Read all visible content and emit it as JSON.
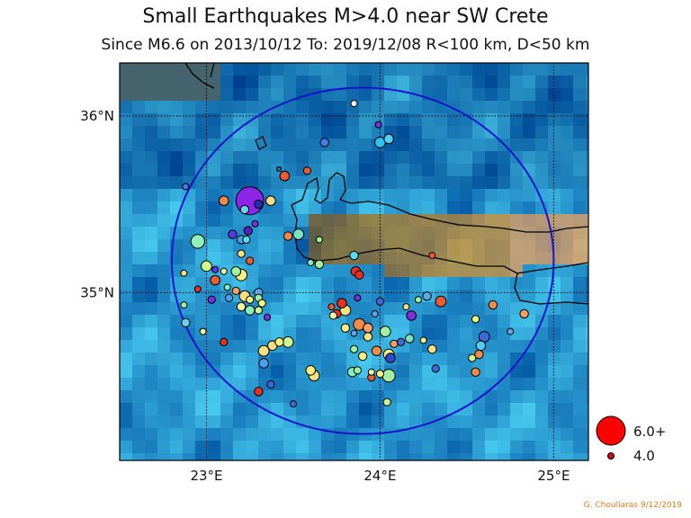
{
  "title": "Small Earthquakes M>4.0 near SW Crete",
  "subtitle": "Since M6.6 on 2013/10/12  To: 2019/12/08 R<100 km, D<50 km",
  "credit": "G. Chouliaras 9/12/2019",
  "axes": {
    "lon_range": [
      22.5,
      25.2
    ],
    "lat_range": [
      34.05,
      36.3
    ],
    "x_ticks": [
      {
        "value": 23,
        "label": "23°E"
      },
      {
        "value": 24,
        "label": "24°E"
      },
      {
        "value": 25,
        "label": "25°E"
      }
    ],
    "y_ticks": [
      {
        "value": 35,
        "label": "35°N"
      },
      {
        "value": 36,
        "label": "36°N"
      }
    ],
    "grid": "dotted"
  },
  "colors": {
    "circle": "#1515cc",
    "coast": "#000000"
  },
  "legend": {
    "placement": "bottom-right",
    "large_label": "6.0+",
    "small_label": "4.0"
  },
  "chart_data": {
    "type": "scatter",
    "region_circle": {
      "center_lon": 23.9,
      "center_lat": 35.18,
      "radius_lon": 1.1,
      "radius_lat": 0.98
    },
    "events": [
      {
        "lon": 23.25,
        "lat": 35.52,
        "mag": 6.0,
        "color": "#8b25e8"
      },
      {
        "lon": 22.95,
        "lat": 35.29,
        "mag": 4.7,
        "color": "#8ff0b8"
      },
      {
        "lon": 23.37,
        "lat": 35.52,
        "mag": 4.3,
        "color": "#f8dc8a"
      },
      {
        "lon": 23.22,
        "lat": 35.47,
        "mag": 4.2,
        "color": "#6ad0f0"
      },
      {
        "lon": 23.3,
        "lat": 35.5,
        "mag": 4.2,
        "color": "#1e2fb0"
      },
      {
        "lon": 23.1,
        "lat": 35.52,
        "mag": 4.3,
        "color": "#f08a48"
      },
      {
        "lon": 23.45,
        "lat": 35.66,
        "mag": 4.3,
        "color": "#f05a30"
      },
      {
        "lon": 23.58,
        "lat": 35.69,
        "mag": 4.1,
        "color": "#f05a30"
      },
      {
        "lon": 23.68,
        "lat": 35.85,
        "mag": 4.2,
        "color": "#4a7ae8"
      },
      {
        "lon": 23.85,
        "lat": 36.07,
        "mag": 4.0,
        "color": "#f6f6f6"
      },
      {
        "lon": 23.99,
        "lat": 35.95,
        "mag": 4.0,
        "color": "#7a30d8"
      },
      {
        "lon": 24.0,
        "lat": 35.85,
        "mag": 4.4,
        "color": "#30c0f0"
      },
      {
        "lon": 24.05,
        "lat": 35.87,
        "mag": 4.3,
        "color": "#50d0f0"
      },
      {
        "lon": 22.88,
        "lat": 35.6,
        "mag": 4.0,
        "color": "#4a7ae8"
      },
      {
        "lon": 23.15,
        "lat": 35.33,
        "mag": 4.2,
        "color": "#5a3ae0"
      },
      {
        "lon": 23.2,
        "lat": 35.3,
        "mag": 4.2,
        "color": "#4aa0f0"
      },
      {
        "lon": 23.23,
        "lat": 35.3,
        "mag": 4.1,
        "color": "#5adcf0"
      },
      {
        "lon": 23.24,
        "lat": 35.35,
        "mag": 4.2,
        "color": "#5020c0"
      },
      {
        "lon": 23.28,
        "lat": 35.39,
        "mag": 4.0,
        "color": "#8030d8"
      },
      {
        "lon": 23.47,
        "lat": 35.32,
        "mag": 4.2,
        "color": "#f08a48"
      },
      {
        "lon": 23.53,
        "lat": 35.33,
        "mag": 4.4,
        "color": "#7ae0c0"
      },
      {
        "lon": 23.65,
        "lat": 35.3,
        "mag": 4.0,
        "color": "#a0f0a0"
      },
      {
        "lon": 23.2,
        "lat": 35.22,
        "mag": 4.1,
        "color": "#f8e080"
      },
      {
        "lon": 23.25,
        "lat": 35.18,
        "mag": 4.1,
        "color": "#f05a30"
      },
      {
        "lon": 23.0,
        "lat": 35.15,
        "mag": 4.4,
        "color": "#d0f890"
      },
      {
        "lon": 22.87,
        "lat": 35.11,
        "mag": 4.0,
        "color": "#f8e080"
      },
      {
        "lon": 23.05,
        "lat": 35.13,
        "mag": 4.0,
        "color": "#5a3ae0"
      },
      {
        "lon": 23.1,
        "lat": 35.12,
        "mag": 4.0,
        "color": "#f8f8a0"
      },
      {
        "lon": 23.17,
        "lat": 35.12,
        "mag": 4.3,
        "color": "#a0f0a0"
      },
      {
        "lon": 23.2,
        "lat": 35.1,
        "mag": 4.5,
        "color": "#f8f080"
      },
      {
        "lon": 23.05,
        "lat": 35.07,
        "mag": 4.3,
        "color": "#f05a30"
      },
      {
        "lon": 23.12,
        "lat": 35.03,
        "mag": 4.0,
        "color": "#80f0c0"
      },
      {
        "lon": 22.95,
        "lat": 35.02,
        "mag": 4.0,
        "color": "#e83020"
      },
      {
        "lon": 23.17,
        "lat": 35.01,
        "mag": 4.1,
        "color": "#f8a060"
      },
      {
        "lon": 23.3,
        "lat": 35.0,
        "mag": 4.2,
        "color": "#5aa8e8"
      },
      {
        "lon": 23.03,
        "lat": 34.96,
        "mag": 4.1,
        "color": "#7a30d8"
      },
      {
        "lon": 23.13,
        "lat": 34.97,
        "mag": 4.1,
        "color": "#4aa0f0"
      },
      {
        "lon": 23.22,
        "lat": 34.98,
        "mag": 4.4,
        "color": "#f8e080"
      },
      {
        "lon": 23.25,
        "lat": 34.96,
        "mag": 4.1,
        "color": "#f8f080"
      },
      {
        "lon": 23.3,
        "lat": 34.97,
        "mag": 4.1,
        "color": "#a0f0a0"
      },
      {
        "lon": 23.32,
        "lat": 34.94,
        "mag": 4.1,
        "color": "#f8f880"
      },
      {
        "lon": 23.2,
        "lat": 34.92,
        "mag": 4.2,
        "color": "#f8f8a0"
      },
      {
        "lon": 23.25,
        "lat": 34.9,
        "mag": 4.3,
        "color": "#80f0c0"
      },
      {
        "lon": 23.3,
        "lat": 34.9,
        "mag": 4.1,
        "color": "#d0f890"
      },
      {
        "lon": 22.87,
        "lat": 34.93,
        "mag": 4.0,
        "color": "#a0f0a0"
      },
      {
        "lon": 23.35,
        "lat": 34.86,
        "mag": 4.0,
        "color": "#7a30d8"
      },
      {
        "lon": 22.88,
        "lat": 34.83,
        "mag": 4.2,
        "color": "#6ad0f0"
      },
      {
        "lon": 22.98,
        "lat": 34.78,
        "mag": 4.0,
        "color": "#f8f8a0"
      },
      {
        "lon": 23.1,
        "lat": 34.72,
        "mag": 4.1,
        "color": "#e83020"
      },
      {
        "lon": 23.38,
        "lat": 34.7,
        "mag": 4.3,
        "color": "#f8e080"
      },
      {
        "lon": 23.42,
        "lat": 34.72,
        "mag": 4.2,
        "color": "#f8f080"
      },
      {
        "lon": 23.47,
        "lat": 34.72,
        "mag": 4.4,
        "color": "#d0f890"
      },
      {
        "lon": 23.33,
        "lat": 34.67,
        "mag": 4.4,
        "color": "#f8e080"
      },
      {
        "lon": 23.33,
        "lat": 34.6,
        "mag": 4.3,
        "color": "#4aa0f0"
      },
      {
        "lon": 23.6,
        "lat": 34.56,
        "mag": 4.3,
        "color": "#f8f080"
      },
      {
        "lon": 23.62,
        "lat": 34.53,
        "mag": 4.4,
        "color": "#f8e080"
      },
      {
        "lon": 23.37,
        "lat": 34.48,
        "mag": 4.1,
        "color": "#3a6ad8"
      },
      {
        "lon": 23.3,
        "lat": 34.44,
        "mag": 4.2,
        "color": "#e83020"
      },
      {
        "lon": 23.5,
        "lat": 34.37,
        "mag": 4.0,
        "color": "#3a6ad8"
      },
      {
        "lon": 23.6,
        "lat": 35.17,
        "mag": 4.0,
        "color": "#80f0c0"
      },
      {
        "lon": 23.65,
        "lat": 35.16,
        "mag": 4.2,
        "color": "#a0f0a0"
      },
      {
        "lon": 23.85,
        "lat": 35.21,
        "mag": 4.2,
        "color": "#5adcf0"
      },
      {
        "lon": 23.86,
        "lat": 35.12,
        "mag": 4.3,
        "color": "#e83020"
      },
      {
        "lon": 23.88,
        "lat": 35.1,
        "mag": 4.2,
        "color": "#e83020"
      },
      {
        "lon": 23.87,
        "lat": 34.97,
        "mag": 4.0,
        "color": "#7a30d8"
      },
      {
        "lon": 23.78,
        "lat": 34.94,
        "mag": 4.3,
        "color": "#e83020"
      },
      {
        "lon": 23.72,
        "lat": 34.92,
        "mag": 4.0,
        "color": "#f05a30"
      },
      {
        "lon": 23.75,
        "lat": 34.88,
        "mag": 4.2,
        "color": "#e83020"
      },
      {
        "lon": 23.8,
        "lat": 34.9,
        "mag": 4.4,
        "color": "#f8e080"
      },
      {
        "lon": 23.73,
        "lat": 34.87,
        "mag": 4.1,
        "color": "#f8f8a0"
      },
      {
        "lon": 23.8,
        "lat": 34.8,
        "mag": 4.2,
        "color": "#f8f080"
      },
      {
        "lon": 23.88,
        "lat": 34.82,
        "mag": 4.5,
        "color": "#f08a48"
      },
      {
        "lon": 23.85,
        "lat": 34.77,
        "mag": 4.0,
        "color": "#5aa8e8"
      },
      {
        "lon": 23.93,
        "lat": 34.8,
        "mag": 4.3,
        "color": "#f8a060"
      },
      {
        "lon": 23.93,
        "lat": 34.75,
        "mag": 4.2,
        "color": "#f8e080"
      },
      {
        "lon": 23.97,
        "lat": 34.88,
        "mag": 4.0,
        "color": "#5aa8e8"
      },
      {
        "lon": 24.0,
        "lat": 34.95,
        "mag": 4.1,
        "color": "#3a6ad8"
      },
      {
        "lon": 24.03,
        "lat": 34.78,
        "mag": 4.4,
        "color": "#a0f0a0"
      },
      {
        "lon": 23.85,
        "lat": 34.68,
        "mag": 4.1,
        "color": "#a0f0a0"
      },
      {
        "lon": 23.9,
        "lat": 34.64,
        "mag": 4.2,
        "color": "#f8f080"
      },
      {
        "lon": 23.98,
        "lat": 34.67,
        "mag": 4.3,
        "color": "#f08a48"
      },
      {
        "lon": 24.05,
        "lat": 34.65,
        "mag": 4.4,
        "color": "#f8f880"
      },
      {
        "lon": 24.08,
        "lat": 34.71,
        "mag": 4.1,
        "color": "#f8a060"
      },
      {
        "lon": 24.12,
        "lat": 34.72,
        "mag": 4.1,
        "color": "#3a6ad8"
      },
      {
        "lon": 24.17,
        "lat": 34.74,
        "mag": 4.2,
        "color": "#7ae0c0"
      },
      {
        "lon": 24.06,
        "lat": 34.63,
        "mag": 4.3,
        "color": "#2a4ac8"
      },
      {
        "lon": 23.84,
        "lat": 34.55,
        "mag": 4.3,
        "color": "#80f0c0"
      },
      {
        "lon": 23.87,
        "lat": 34.56,
        "mag": 4.1,
        "color": "#a0f0a0"
      },
      {
        "lon": 23.95,
        "lat": 34.55,
        "mag": 4.0,
        "color": "#f8f8a0"
      },
      {
        "lon": 23.95,
        "lat": 34.52,
        "mag": 4.1,
        "color": "#f05a30"
      },
      {
        "lon": 24.0,
        "lat": 34.54,
        "mag": 4.1,
        "color": "#f8f080"
      },
      {
        "lon": 24.05,
        "lat": 34.53,
        "mag": 4.6,
        "color": "#a0f0a0"
      },
      {
        "lon": 24.04,
        "lat": 34.38,
        "mag": 4.1,
        "color": "#d0f890"
      },
      {
        "lon": 24.15,
        "lat": 34.92,
        "mag": 4.0,
        "color": "#f8e080"
      },
      {
        "lon": 24.18,
        "lat": 34.87,
        "mag": 4.3,
        "color": "#8030d8"
      },
      {
        "lon": 24.22,
        "lat": 34.96,
        "mag": 4.0,
        "color": "#a0f0a0"
      },
      {
        "lon": 24.25,
        "lat": 34.73,
        "mag": 4.0,
        "color": "#f8f080"
      },
      {
        "lon": 24.3,
        "lat": 34.68,
        "mag": 4.2,
        "color": "#f8e080"
      },
      {
        "lon": 24.27,
        "lat": 34.98,
        "mag": 4.2,
        "color": "#5aa8e8"
      },
      {
        "lon": 24.35,
        "lat": 34.95,
        "mag": 4.4,
        "color": "#f05a30"
      },
      {
        "lon": 24.32,
        "lat": 34.57,
        "mag": 4.1,
        "color": "#3a6ad8"
      },
      {
        "lon": 24.3,
        "lat": 35.21,
        "mag": 4.0,
        "color": "#f05a30"
      },
      {
        "lon": 24.6,
        "lat": 34.75,
        "mag": 4.4,
        "color": "#3a6ad8"
      },
      {
        "lon": 24.58,
        "lat": 34.7,
        "mag": 4.3,
        "color": "#50d0f0"
      },
      {
        "lon": 24.57,
        "lat": 34.65,
        "mag": 4.2,
        "color": "#f08a48"
      },
      {
        "lon": 24.53,
        "lat": 34.63,
        "mag": 4.1,
        "color": "#d0f890"
      },
      {
        "lon": 24.55,
        "lat": 34.55,
        "mag": 4.2,
        "color": "#f08a48"
      },
      {
        "lon": 24.55,
        "lat": 34.85,
        "mag": 4.1,
        "color": "#f8f080"
      },
      {
        "lon": 24.65,
        "lat": 34.93,
        "mag": 4.2,
        "color": "#f08a48"
      },
      {
        "lon": 24.83,
        "lat": 34.88,
        "mag": 4.2,
        "color": "#f8a060"
      },
      {
        "lon": 24.75,
        "lat": 34.78,
        "mag": 4.0,
        "color": "#5aa8e8"
      }
    ]
  }
}
